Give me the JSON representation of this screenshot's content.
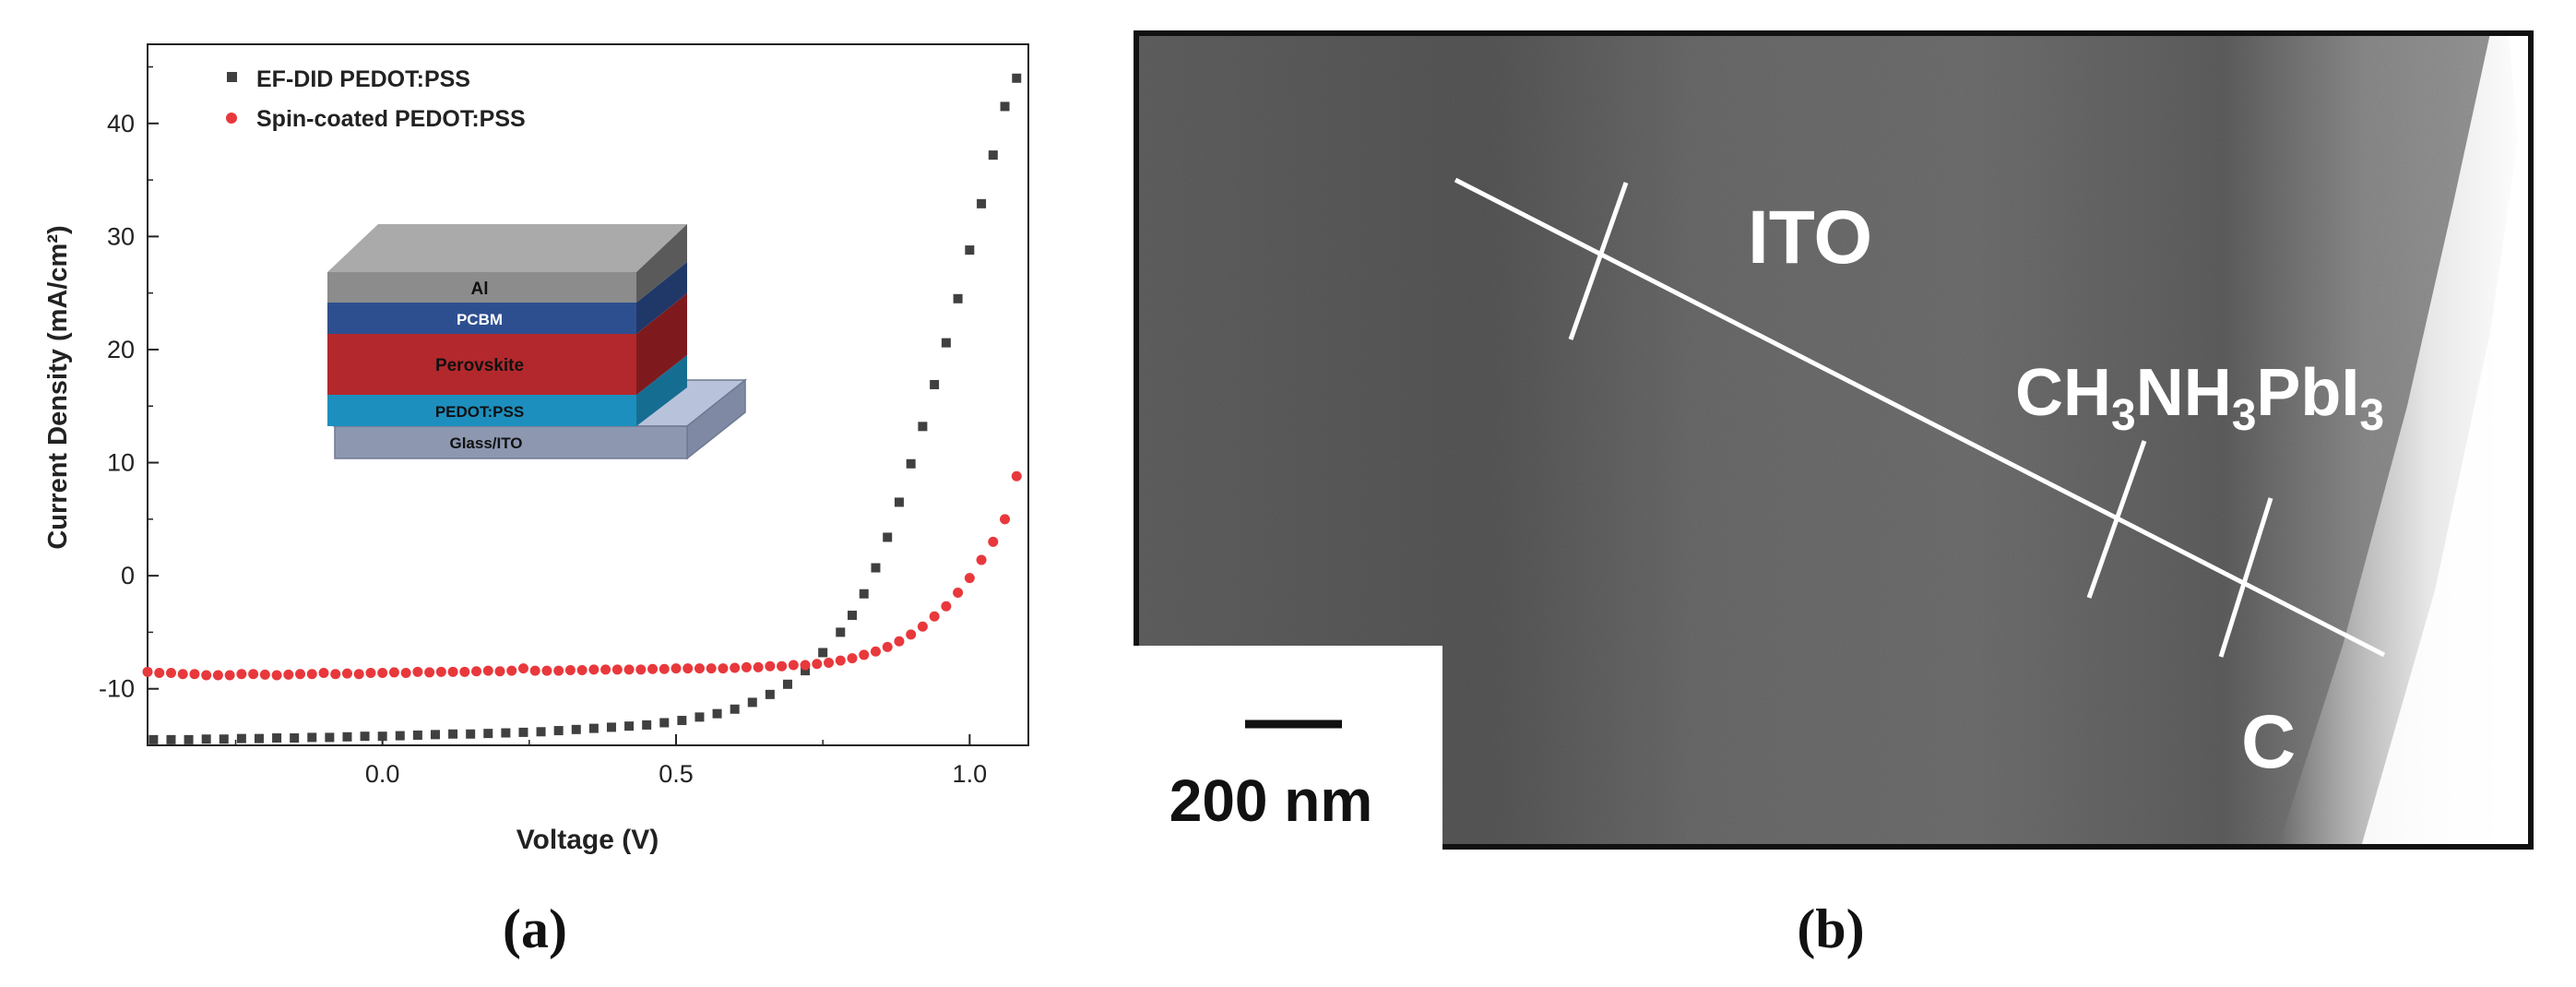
{
  "chart_data": {
    "type": "scatter",
    "panel_label": "(a)",
    "title": "",
    "xlabel": "Voltage (V)",
    "ylabel": "Current Density (mA/cm²)",
    "xlim": [
      -0.4,
      1.1
    ],
    "ylim": [
      -15,
      47
    ],
    "x_ticks": [
      "0.0",
      "0.5",
      "1.0"
    ],
    "y_ticks": [
      "-10",
      "0",
      "10",
      "20",
      "30",
      "40"
    ],
    "legend_position": "top-left",
    "series": [
      {
        "name": "EF-DID PEDOT:PSS",
        "color": "#404040",
        "marker": "square",
        "x": [
          -0.39,
          -0.36,
          -0.33,
          -0.3,
          -0.27,
          -0.24,
          -0.21,
          -0.18,
          -0.15,
          -0.12,
          -0.09,
          -0.06,
          -0.03,
          0.0,
          0.03,
          0.06,
          0.09,
          0.12,
          0.15,
          0.18,
          0.21,
          0.24,
          0.27,
          0.3,
          0.33,
          0.36,
          0.39,
          0.42,
          0.45,
          0.48,
          0.51,
          0.54,
          0.57,
          0.6,
          0.63,
          0.66,
          0.69,
          0.72,
          0.75,
          0.78,
          0.8,
          0.82,
          0.84,
          0.86,
          0.88,
          0.9,
          0.92,
          0.94,
          0.96,
          0.98,
          1.0,
          1.02,
          1.04,
          1.06,
          1.08
        ],
        "y": [
          -14.5,
          -14.5,
          -14.5,
          -14.45,
          -14.45,
          -14.4,
          -14.4,
          -14.35,
          -14.35,
          -14.3,
          -14.3,
          -14.25,
          -14.2,
          -14.2,
          -14.15,
          -14.1,
          -14.05,
          -14.0,
          -14.0,
          -13.95,
          -13.9,
          -13.85,
          -13.8,
          -13.7,
          -13.6,
          -13.5,
          -13.4,
          -13.3,
          -13.2,
          -13.0,
          -12.8,
          -12.5,
          -12.2,
          -11.8,
          -11.2,
          -10.5,
          -9.6,
          -8.4,
          -6.8,
          -5.0,
          -3.5,
          -1.6,
          0.7,
          3.4,
          6.5,
          9.9,
          13.2,
          16.9,
          20.6,
          24.5,
          28.8,
          32.9,
          37.2,
          41.5,
          44.0
        ]
      },
      {
        "name": "Spin-coated PEDOT:PSS",
        "color": "#e8383c",
        "marker": "circle",
        "x": [
          -0.4,
          -0.38,
          -0.36,
          -0.34,
          -0.32,
          -0.3,
          -0.28,
          -0.26,
          -0.24,
          -0.22,
          -0.2,
          -0.18,
          -0.16,
          -0.14,
          -0.12,
          -0.1,
          -0.08,
          -0.06,
          -0.04,
          -0.02,
          0.0,
          0.02,
          0.04,
          0.06,
          0.08,
          0.1,
          0.12,
          0.14,
          0.16,
          0.18,
          0.2,
          0.22,
          0.24,
          0.26,
          0.28,
          0.3,
          0.32,
          0.34,
          0.36,
          0.38,
          0.4,
          0.42,
          0.44,
          0.46,
          0.48,
          0.5,
          0.52,
          0.54,
          0.56,
          0.58,
          0.6,
          0.62,
          0.64,
          0.66,
          0.68,
          0.7,
          0.72,
          0.74,
          0.76,
          0.78,
          0.8,
          0.82,
          0.84,
          0.86,
          0.88,
          0.9,
          0.92,
          0.94,
          0.96,
          0.98,
          1.0,
          1.02,
          1.04,
          1.06,
          1.08
        ],
        "y": [
          -8.5,
          -8.6,
          -8.6,
          -8.7,
          -8.7,
          -8.8,
          -8.8,
          -8.8,
          -8.7,
          -8.7,
          -8.75,
          -8.8,
          -8.75,
          -8.7,
          -8.7,
          -8.6,
          -8.7,
          -8.65,
          -8.7,
          -8.6,
          -8.6,
          -8.55,
          -8.6,
          -8.5,
          -8.55,
          -8.5,
          -8.5,
          -8.5,
          -8.45,
          -8.4,
          -8.45,
          -8.4,
          -8.2,
          -8.4,
          -8.4,
          -8.4,
          -8.35,
          -8.35,
          -8.3,
          -8.3,
          -8.3,
          -8.3,
          -8.3,
          -8.25,
          -8.25,
          -8.2,
          -8.2,
          -8.2,
          -8.2,
          -8.2,
          -8.15,
          -8.1,
          -8.1,
          -8.0,
          -8.0,
          -7.9,
          -7.9,
          -7.8,
          -7.7,
          -7.5,
          -7.3,
          -7.0,
          -6.7,
          -6.3,
          -5.8,
          -5.2,
          -4.5,
          -3.6,
          -2.7,
          -1.5,
          -0.2,
          1.4,
          3.0,
          5.0,
          8.8
        ]
      }
    ],
    "inset": {
      "type": "device-stack",
      "layers": [
        {
          "label": "Al",
          "color": "#8c8c8c"
        },
        {
          "label": "PCBM",
          "color": "#2e4f8f"
        },
        {
          "label": "Perovskite",
          "color": "#b3282c"
        },
        {
          "label": "PEDOT:PSS",
          "color": "#1d8fbe"
        },
        {
          "label": "Glass/ITO",
          "color": "#8d97b0"
        }
      ]
    }
  },
  "panel_b": {
    "panel_label": "(b)",
    "labels": {
      "ito": "ITO",
      "mapi_base": "CH",
      "mapi_s1": "3",
      "mapi_mid": "NH",
      "mapi_s2": "3",
      "mapi_pb": "PbI",
      "mapi_s3": "3",
      "carbon": "C"
    },
    "scale_bar": "200 nm"
  }
}
